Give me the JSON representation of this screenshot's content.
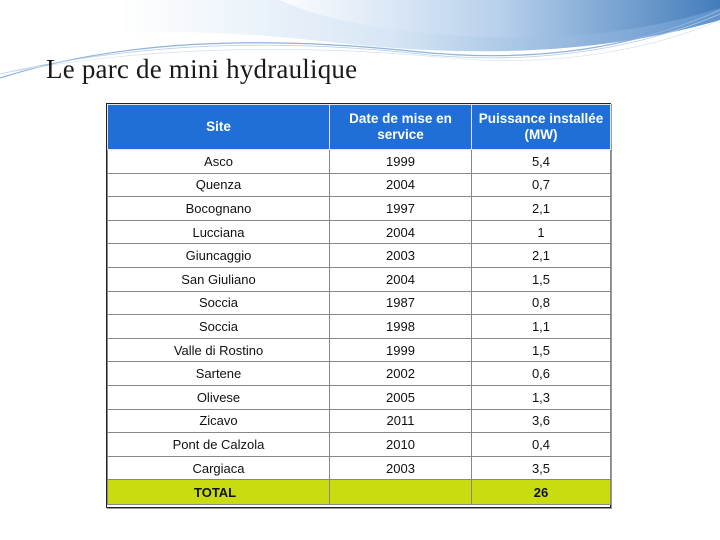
{
  "slide": {
    "title": "Le parc de mini hydraulique"
  },
  "table": {
    "headers": {
      "site": "Site",
      "date": "Date de mise en service",
      "power": "Puissance installée (MW)"
    },
    "rows": [
      {
        "site": "Asco",
        "year": "1999",
        "power": "5,4"
      },
      {
        "site": "Quenza",
        "year": "2004",
        "power": "0,7"
      },
      {
        "site": "Bocognano",
        "year": "1997",
        "power": "2,1"
      },
      {
        "site": "Lucciana",
        "year": "2004",
        "power": "1"
      },
      {
        "site": "Giuncaggio",
        "year": "2003",
        "power": "2,1"
      },
      {
        "site": "San Giuliano",
        "year": "2004",
        "power": "1,5"
      },
      {
        "site": "Soccia",
        "year": "1987",
        "power": "0,8"
      },
      {
        "site": "Soccia",
        "year": "1998",
        "power": "1,1"
      },
      {
        "site": "Valle di Rostino",
        "year": "1999",
        "power": "1,5"
      },
      {
        "site": "Sartene",
        "year": "2002",
        "power": "0,6"
      },
      {
        "site": "Olivese",
        "year": "2005",
        "power": "1,3"
      },
      {
        "site": "Zicavo",
        "year": "2011",
        "power": "3,6"
      },
      {
        "site": "Pont de Calzola",
        "year": "2010",
        "power": "0,4"
      },
      {
        "site": "Cargiaca",
        "year": "2003",
        "power": "3,5"
      }
    ],
    "total": {
      "label": "TOTAL",
      "value": "26"
    }
  },
  "colors": {
    "header_bg": "#1f6fd6",
    "total_bg": "#c8dc10",
    "deco_blue": "#7fa9d8"
  }
}
